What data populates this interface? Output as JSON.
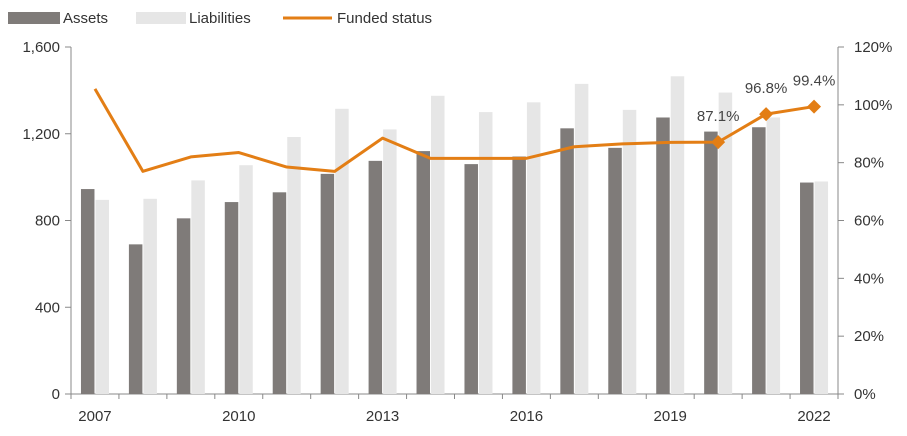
{
  "chart_data": {
    "type": "bar",
    "categories": [
      "2007",
      "2008",
      "2009",
      "2010",
      "2011",
      "2012",
      "2013",
      "2014",
      "2015",
      "2016",
      "2017",
      "2018",
      "2019",
      "2020",
      "2021",
      "2022"
    ],
    "x_tick_labels": [
      "2007",
      "2010",
      "2013",
      "2016",
      "2019",
      "2022"
    ],
    "series": [
      {
        "name": "Assets",
        "type": "bar",
        "axis": "left",
        "values": [
          945,
          690,
          810,
          885,
          930,
          1015,
          1075,
          1120,
          1060,
          1095,
          1225,
          1135,
          1275,
          1210,
          1230,
          975
        ]
      },
      {
        "name": "Liabilities",
        "type": "bar",
        "axis": "left",
        "values": [
          895,
          900,
          985,
          1055,
          1185,
          1315,
          1220,
          1375,
          1300,
          1345,
          1430,
          1310,
          1465,
          1390,
          1275,
          980
        ]
      },
      {
        "name": "Funded status",
        "type": "line",
        "axis": "right",
        "values": [
          105.5,
          77,
          82,
          83.5,
          78.5,
          77,
          88.5,
          81.5,
          81.5,
          81.5,
          85.5,
          86.5,
          87,
          87.1,
          96.8,
          99.4
        ]
      }
    ],
    "line_labels": [
      {
        "category": "2020",
        "text": "87.1%"
      },
      {
        "category": "2021",
        "text": "96.8%"
      },
      {
        "category": "2022",
        "text": "99.4%"
      }
    ],
    "ylim_left": [
      0,
      1600
    ],
    "yticks_left": [
      "0",
      "400",
      "800",
      "1,200",
      "1,600"
    ],
    "ylim_right": [
      0,
      120
    ],
    "yticks_right": [
      "0%",
      "20%",
      "40%",
      "60%",
      "80%",
      "100%",
      "120%"
    ],
    "grid": false,
    "legend": "top-left",
    "colors": {
      "assets": "#7f7b79",
      "liabilities": "#e6e6e6",
      "funded": "#e37e15",
      "axis": "#888888"
    }
  }
}
